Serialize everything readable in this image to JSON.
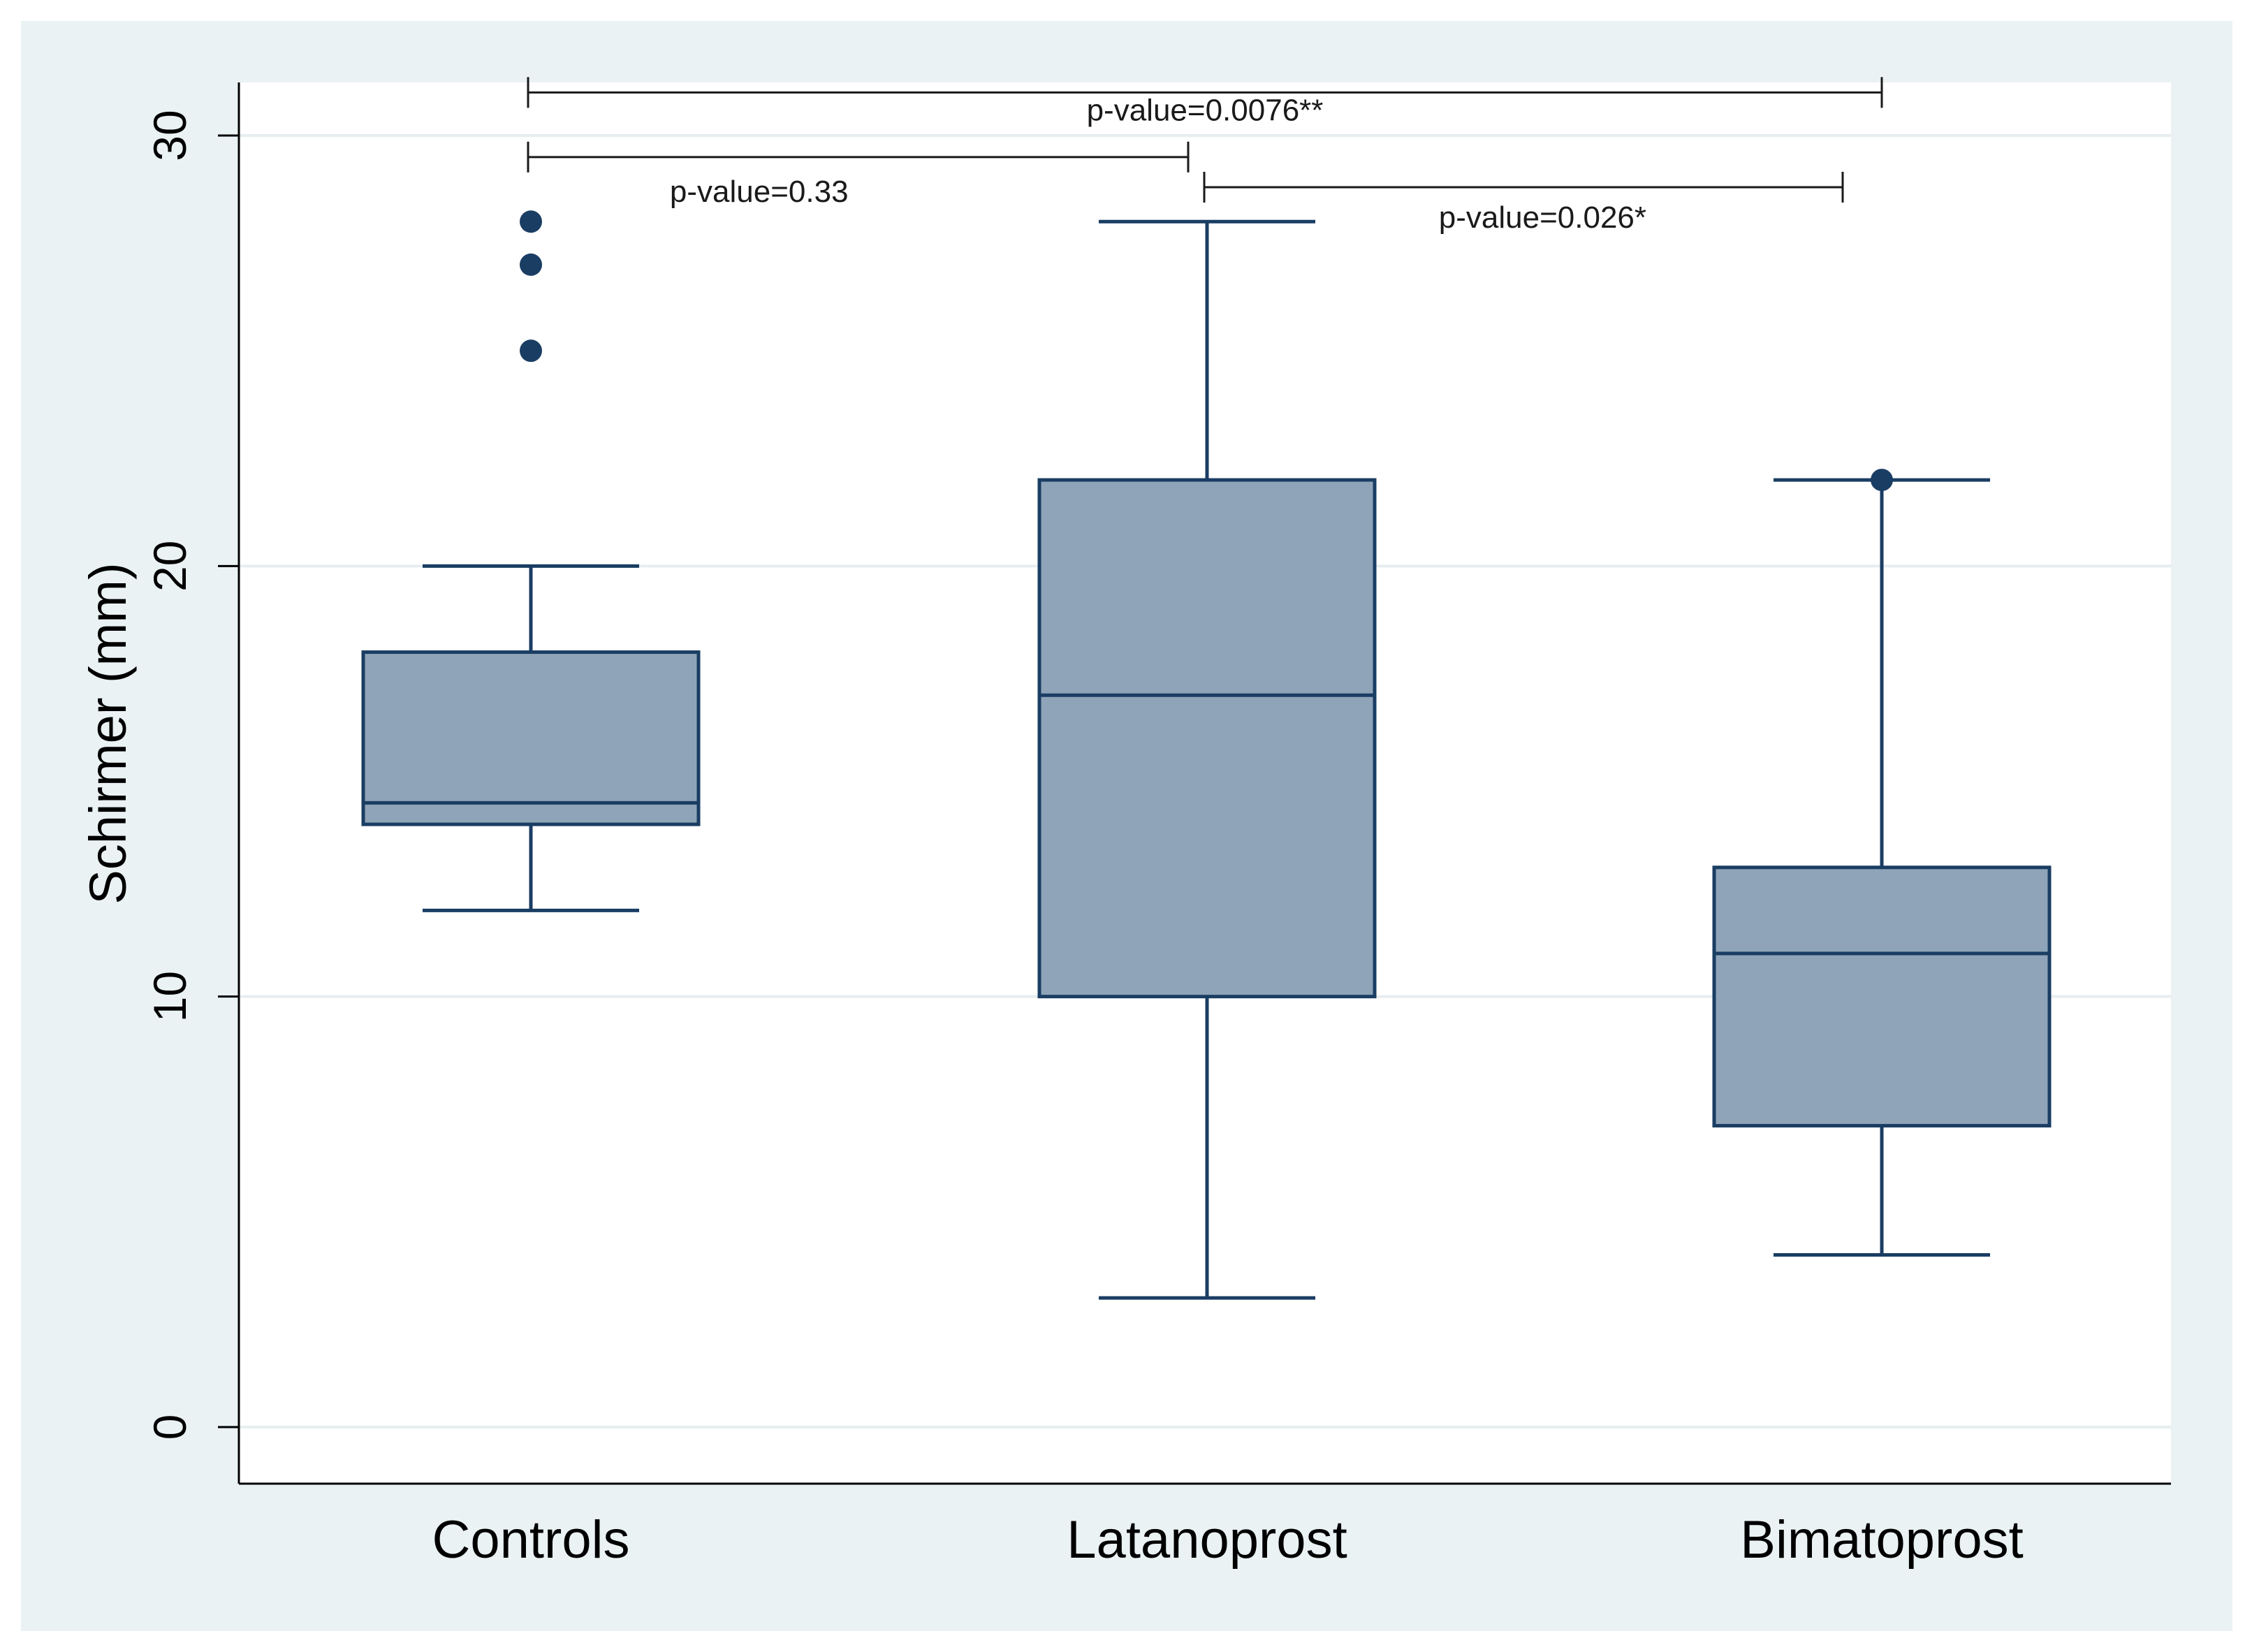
{
  "chart_data": {
    "type": "box",
    "title": "",
    "xlabel": "",
    "ylabel": "Schirmer (mm)",
    "ylim": [
      0,
      30
    ],
    "yticks": [
      0,
      10,
      20,
      30
    ],
    "grid": true,
    "colors": {
      "box_fill": "#8fa4b8",
      "box_stroke": "#1a3d63",
      "outlier": "#1a3d63",
      "outer_bg": "#eaf2f3",
      "plot_bg": "#ffffff",
      "grid": "#e6eef0"
    },
    "categories": [
      "Controls",
      "Latanoprost",
      "Bimatoprost"
    ],
    "boxes": [
      {
        "name": "Controls",
        "whisker_low": 12,
        "q1": 14,
        "median": 14.5,
        "q3": 18,
        "whisker_high": 20,
        "outliers": [
          25,
          27,
          28
        ]
      },
      {
        "name": "Latanoprost",
        "whisker_low": 3,
        "q1": 10,
        "median": 17,
        "q3": 22,
        "whisker_high": 28,
        "outliers": []
      },
      {
        "name": "Bimatoprost",
        "whisker_low": 4,
        "q1": 7,
        "median": 11,
        "q3": 13,
        "whisker_high": 22,
        "outliers": [
          22
        ]
      }
    ],
    "comparisons": [
      {
        "from": "Controls",
        "to": "Bimatoprost",
        "level": 31,
        "label": "p-value=0.0076**"
      },
      {
        "from": "Controls",
        "to": "Latanoprost",
        "level": 29.5,
        "label": "p-value=0.33"
      },
      {
        "from": "Latanoprost",
        "to": "Bimatoprost",
        "level": 28.8,
        "label": "p-value=0.026*"
      }
    ]
  }
}
